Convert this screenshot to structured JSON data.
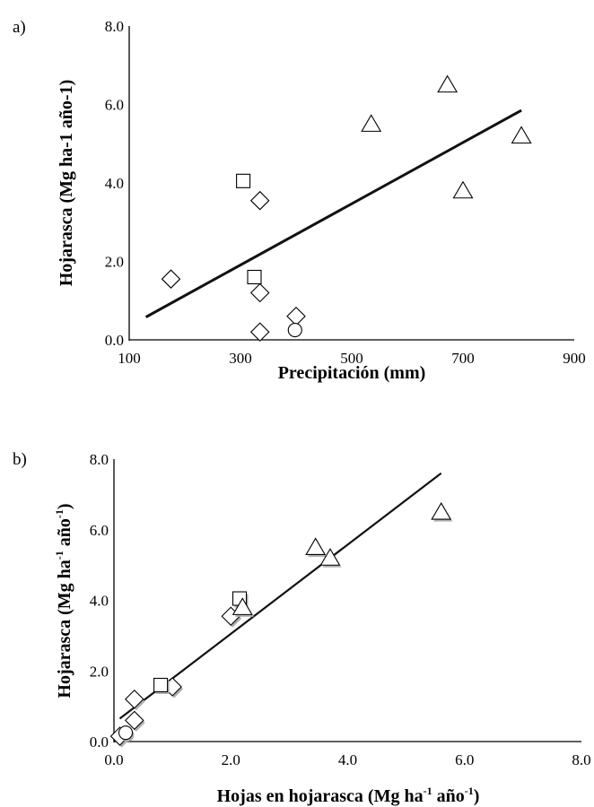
{
  "chart_data": [
    {
      "panel_label": "a)",
      "type": "scatter",
      "xlabel": "Precipitación (mm)",
      "ylabel": "Hojarasca (Mg ha-1 año-1)",
      "xlim": [
        100,
        900
      ],
      "ylim": [
        0,
        8
      ],
      "x_ticks": [
        "100",
        "300",
        "500",
        "700",
        "900"
      ],
      "y_ticks": [
        "0.0",
        "2.0",
        "4.0",
        "6.0",
        "8.0"
      ],
      "grid": false,
      "legend": "none",
      "series": [
        {
          "marker": "diamond",
          "points": [
            [
              175,
              1.55
            ],
            [
              335,
              3.55
            ],
            [
              335,
              1.2
            ],
            [
              335,
              0.2
            ],
            [
              400,
              0.6
            ]
          ]
        },
        {
          "marker": "square",
          "points": [
            [
              305,
              4.05
            ],
            [
              325,
              1.6
            ]
          ]
        },
        {
          "marker": "circle",
          "points": [
            [
              398,
              0.25
            ]
          ]
        },
        {
          "marker": "triangle",
          "points": [
            [
              535,
              5.5
            ],
            [
              672,
              6.5
            ],
            [
              700,
              3.8
            ],
            [
              805,
              5.2
            ]
          ]
        }
      ],
      "trendline": {
        "from": [
          130,
          0.58
        ],
        "to": [
          805,
          5.85
        ]
      }
    },
    {
      "panel_label": "b)",
      "type": "scatter",
      "xlabel": "Hojas en hojarasca (Mg ha-1 año-1)",
      "ylabel": "Hojarasca (Mg ha-1 año-1)",
      "xlim": [
        0,
        8
      ],
      "ylim": [
        0,
        8
      ],
      "x_ticks": [
        "0.0",
        "2.0",
        "4.0",
        "6.0",
        "8.0"
      ],
      "y_ticks": [
        "0.0",
        "2.0",
        "4.0",
        "6.0",
        "8.0"
      ],
      "grid": false,
      "legend": "none",
      "series": [
        {
          "marker": "diamond",
          "points": [
            [
              0.1,
              0.15
            ],
            [
              0.35,
              1.2
            ],
            [
              0.35,
              0.6
            ],
            [
              1.0,
              1.55
            ],
            [
              2.0,
              3.55
            ]
          ]
        },
        {
          "marker": "square",
          "points": [
            [
              0.8,
              1.6
            ],
            [
              2.15,
              4.05
            ]
          ]
        },
        {
          "marker": "circle",
          "points": [
            [
              0.2,
              0.25
            ]
          ]
        },
        {
          "marker": "triangle",
          "points": [
            [
              2.2,
              3.8
            ],
            [
              3.45,
              5.5
            ],
            [
              3.7,
              5.2
            ],
            [
              5.6,
              6.5
            ]
          ]
        }
      ],
      "trendline": {
        "from": [
          0.1,
          0.65
        ],
        "to": [
          5.6,
          7.6
        ]
      }
    }
  ]
}
